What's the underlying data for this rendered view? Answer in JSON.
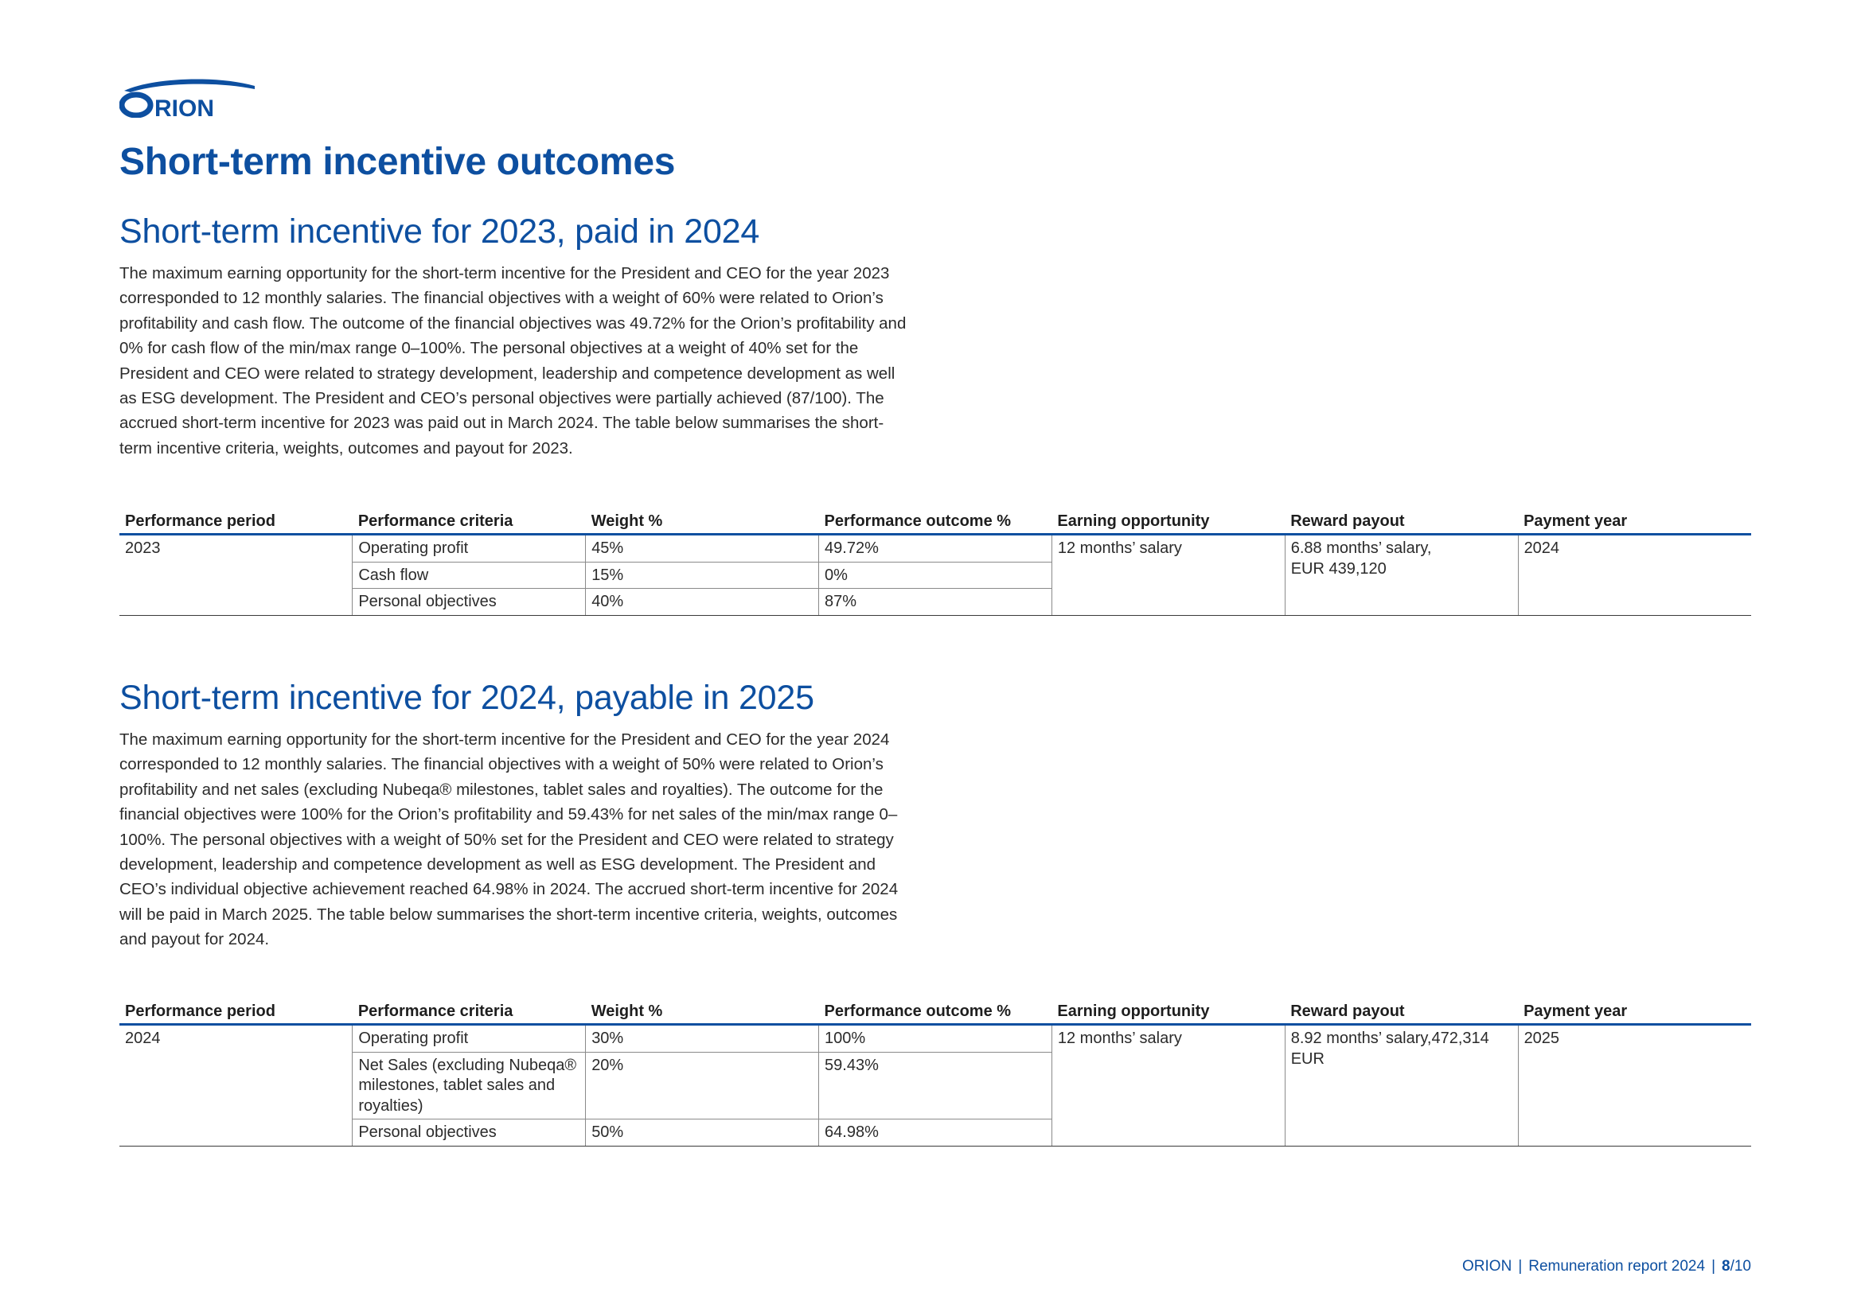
{
  "logo": {
    "text": "ORION",
    "color": "#0d4fa0"
  },
  "page_title": "Short-term incentive outcomes",
  "sections": [
    {
      "title": "Short-term incentive for 2023, paid in 2024",
      "body": "The maximum earning opportunity for the short-term incentive for the President and CEO for the year 2023 corresponded to 12 monthly salaries. The financial objectives with a weight of 60% were related to Orion’s profitability and cash flow. The outcome of the financial objectives was 49.72% for the Orion’s profitability and 0% for cash flow of the min/max range 0–100%. The personal objectives at a weight of 40% set for the President and CEO were related to strategy development, leadership and competence development as well as ESG development. The President and CEO’s personal objectives were partially achieved (87/100). The accrued short-term incentive for 2023 was paid out in March 2024. The table below summarises the short-term incentive criteria, weights, outcomes and payout for 2023.",
      "table": {
        "headers": [
          "Performance period",
          "Performance criteria",
          "Weight %",
          "Performance outcome %",
          "Earning opportunity",
          "Reward payout",
          "Payment year"
        ],
        "period": "2023",
        "rows": [
          {
            "criteria": "Operating profit",
            "weight": "45%",
            "outcome": "49.72%"
          },
          {
            "criteria": "Cash flow",
            "weight": "15%",
            "outcome": "0%"
          },
          {
            "criteria": "Personal objectives",
            "weight": "40%",
            "outcome": "87%"
          }
        ],
        "earning_opportunity": "12 months’ salary",
        "reward_payout_line1": "6.88 months’ salary,",
        "reward_payout_line2": "EUR 439,120",
        "payment_year": "2024"
      }
    },
    {
      "title": "Short-term incentive for 2024, payable in 2025",
      "body": "The maximum earning opportunity for the short-term incentive for the President and CEO for the year 2024 corresponded to 12 monthly salaries. The financial objectives with a weight of 50% were related to Orion’s profitability and net sales (excluding Nubeqa® milestones, tablet sales and royalties). The outcome for the financial objectives were 100% for the Orion’s profitability and 59.43% for net sales of the min/max range 0–100%. The personal objectives with a weight of 50% set for the President and CEO were related to strategy development, leadership and competence development as well as ESG development. The President and CEO’s individual objective achievement reached 64.98% in 2024. The accrued short-term incentive for 2024 will be paid in March 2025. The table below summarises the short-term incentive criteria, weights, outcomes and payout for 2024.",
      "table": {
        "headers": [
          "Performance period",
          "Performance criteria",
          "Weight %",
          "Performance outcome %",
          "Earning opportunity",
          "Reward payout",
          "Payment year"
        ],
        "period": "2024",
        "rows": [
          {
            "criteria": "Operating profit",
            "weight": "30%",
            "outcome": "100%"
          },
          {
            "criteria": "Net Sales (excluding Nubeqa® milestones, tablet sales and royalties)",
            "weight": "20%",
            "outcome": "59.43%"
          },
          {
            "criteria": "Personal objectives",
            "weight": "50%",
            "outcome": "64.98%"
          }
        ],
        "earning_opportunity": "12 months’ salary",
        "reward_payout": "8.92 months’ salary,472,314 EUR",
        "payment_year": "2025"
      }
    }
  ],
  "footer": {
    "company": "ORION",
    "report": "Remuneration report 2024",
    "page_current": "8",
    "page_total": "/10"
  }
}
